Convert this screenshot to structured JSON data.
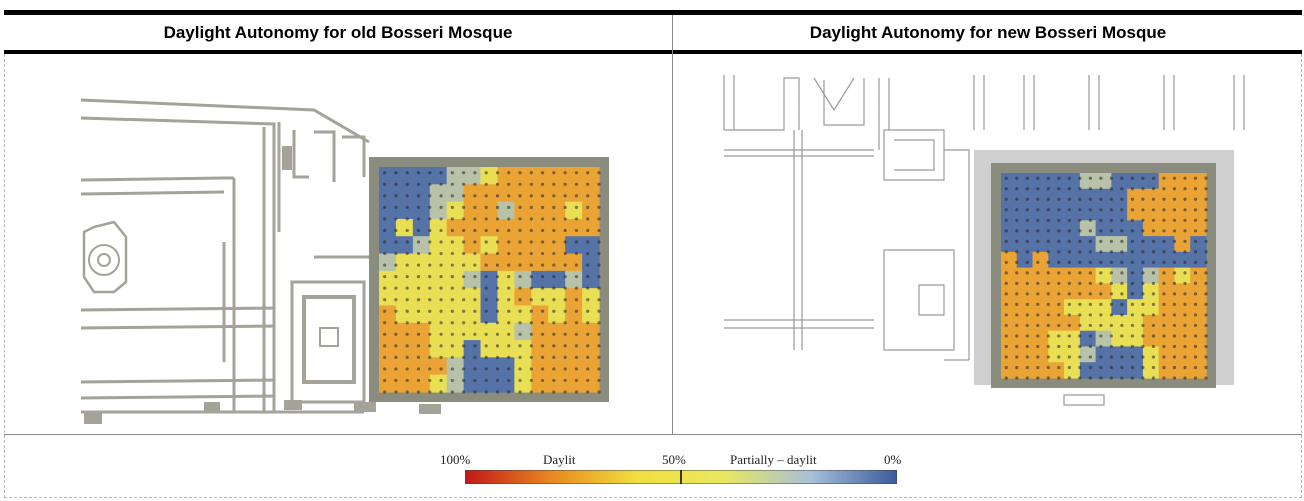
{
  "table": {
    "header_left": "Daylight Autonomy for old Bosseri Mosque",
    "header_right": "Daylight Autonomy for new Bosseri Mosque"
  },
  "legend": {
    "label_100": "100%",
    "label_daylit": "Daylit",
    "label_50": "50%",
    "label_partial": "Partially – daylit",
    "label_0": "0%",
    "colors": [
      "#c01818",
      "#e88820",
      "#f0e040",
      "#e8e860",
      "#a8c0d8",
      "#3a5a9c"
    ]
  },
  "heatmap": {
    "old": [
      "BBBBMMYOOOOOO",
      "BBBMMOOOOOOOO",
      "BBBMYOOMOOOYO",
      "BYBYOOOOOOOOO",
      "BBMYYOYOOOOBB",
      "MYYYYYOOOOOOB",
      "YYYYYMBYMBBMB",
      "YYYYYYBYOYYOY",
      "OYYYYYBYYOYOY",
      "OOOYYYYYMOOOO",
      "OOOYYBYYYOOOO",
      "OOOOMBBBYOOOO",
      "OOOYMBBBYOOOO"
    ],
    "new": [
      "BBBBBMMBBBOOO",
      "BBBBBBBBOOOOO",
      "BBBBBBBBOOOOO",
      "BBBBBMBBBOOOO",
      "BBBBBBMMBBBOB",
      "OBOBBBBBBBBBB",
      "OOOOOOYMBMOYO",
      "OOOOOOOYBYOOO",
      "OOOOYYYBYYOOO",
      "OOOOOYYYYOOOO",
      "OOOYYBMYYOOOO",
      "OOOYYMBBBYOOO",
      "OOOOYBBBBYOOO"
    ]
  }
}
